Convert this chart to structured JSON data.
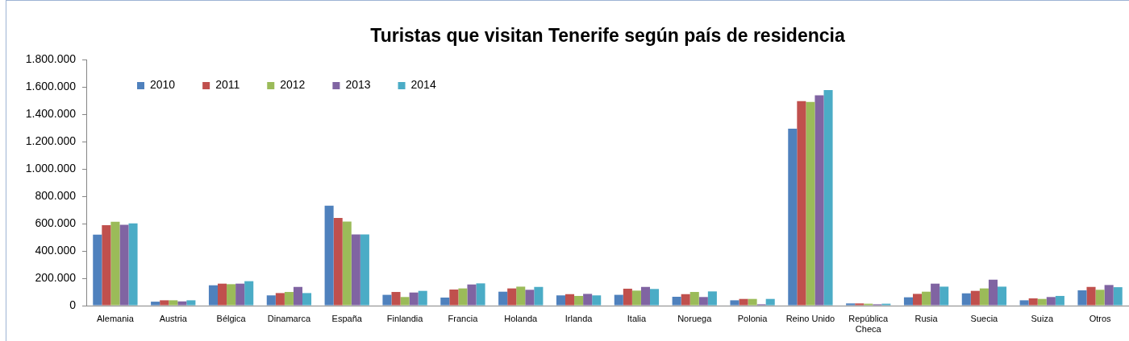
{
  "chart_data": {
    "type": "bar",
    "title": "Turistas que visitan Tenerife según país de residencia",
    "categories": [
      "Alemania",
      "Austria",
      "Bélgica",
      "Dinamarca",
      "España",
      "Finlandia",
      "Francia",
      "Holanda",
      "Irlanda",
      "Italia",
      "Noruega",
      "Polonia",
      "Reino Unido",
      "República Checa",
      "Rusia",
      "Suecia",
      "Suiza",
      "Otros"
    ],
    "series": [
      {
        "name": "2010",
        "color": "#4f81bd",
        "values": [
          520000,
          29000,
          149000,
          75000,
          732000,
          79000,
          59000,
          102000,
          75000,
          79000,
          65000,
          39000,
          1296000,
          16000,
          61000,
          90000,
          39000,
          112000
        ]
      },
      {
        "name": "2011",
        "color": "#c0504d",
        "values": [
          589000,
          39000,
          161000,
          92000,
          642000,
          100000,
          118000,
          126000,
          84000,
          124000,
          84000,
          49000,
          1498000,
          16000,
          86000,
          108000,
          53000,
          137000
        ]
      },
      {
        "name": "2012",
        "color": "#9bbb59",
        "values": [
          614000,
          39000,
          157000,
          100000,
          616000,
          63000,
          126000,
          139000,
          71000,
          110000,
          100000,
          49000,
          1492000,
          14000,
          102000,
          126000,
          49000,
          116000
        ]
      },
      {
        "name": "2013",
        "color": "#8064a2",
        "values": [
          593000,
          31000,
          161000,
          137000,
          522000,
          96000,
          155000,
          116000,
          86000,
          137000,
          63000,
          10000,
          1541000,
          10000,
          161000,
          190000,
          63000,
          151000
        ]
      },
      {
        "name": "2014",
        "color": "#4bacc6",
        "values": [
          603000,
          39000,
          179000,
          92000,
          522000,
          108000,
          163000,
          137000,
          75000,
          122000,
          104000,
          49000,
          1580000,
          14000,
          139000,
          139000,
          71000,
          135000
        ]
      }
    ],
    "ylim": [
      0,
      1800000
    ],
    "yticks": [
      0,
      {
        "value": 200000,
        "label": "200.000"
      },
      {
        "value": 400000,
        "label": "400.000"
      },
      {
        "value": 600000,
        "label": "600.000"
      },
      {
        "value": 800000,
        "label": "800.000"
      },
      {
        "value": 1000000,
        "label": "1.000.000"
      },
      {
        "value": 1200000,
        "label": "1.200.000"
      },
      {
        "value": 1400000,
        "label": "1.400.000"
      },
      {
        "value": 1600000,
        "label": "1.600.000"
      },
      {
        "value": 1800000,
        "label": "1.800.000"
      }
    ],
    "legend": "top left",
    "grid": false
  }
}
